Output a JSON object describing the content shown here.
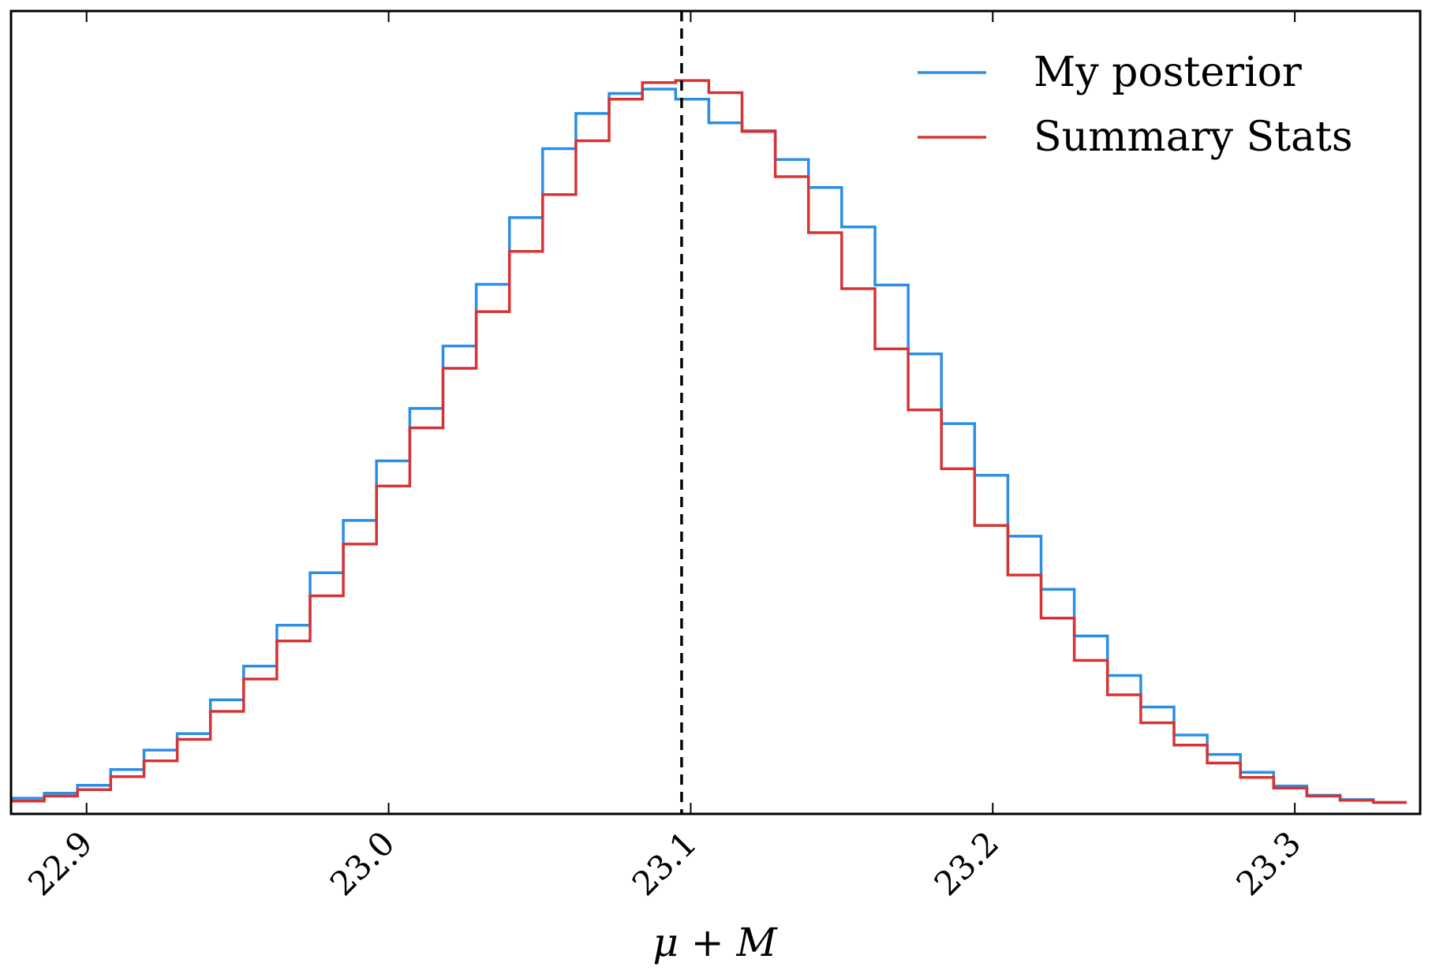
{
  "chart_data": {
    "type": "line",
    "drawstyle": "steps",
    "xlabel": "μ + M",
    "ylabel": "",
    "xlim": [
      22.875,
      23.3415
    ],
    "ylim": [
      0,
      1.0
    ],
    "x_ticks": [
      22.9,
      23.0,
      23.1,
      23.2,
      23.3
    ],
    "x_tick_labels": [
      "22.9",
      "23.0",
      "23.1",
      "23.2",
      "23.3"
    ],
    "y_ticks_shown": false,
    "grid": false,
    "legend_position": "top-right",
    "reference_line": {
      "x": 23.097,
      "style": "dashed",
      "color": "#000000"
    },
    "bin_edges": [
      22.875,
      22.886,
      22.897,
      22.908,
      22.919,
      22.93,
      22.941,
      22.952,
      22.963,
      22.974,
      22.985,
      22.996,
      23.007,
      23.018,
      23.029,
      23.04,
      23.051,
      23.062,
      23.073,
      23.084,
      23.095,
      23.106,
      23.117,
      23.128,
      23.139,
      23.15,
      23.161,
      23.172,
      23.183,
      23.194,
      23.205,
      23.216,
      23.227,
      23.238,
      23.249,
      23.26,
      23.271,
      23.282,
      23.293,
      23.304,
      23.315,
      23.326,
      23.337
    ],
    "series": [
      {
        "name": "My posterior",
        "color": "#2b8ee5",
        "values": [
          0.012,
          0.019,
          0.03,
          0.052,
          0.079,
          0.102,
          0.149,
          0.196,
          0.253,
          0.326,
          0.399,
          0.482,
          0.555,
          0.642,
          0.728,
          0.821,
          0.917,
          0.966,
          0.994,
          1.0,
          0.986,
          0.953,
          0.942,
          0.902,
          0.863,
          0.808,
          0.727,
          0.631,
          0.534,
          0.462,
          0.377,
          0.303,
          0.238,
          0.183,
          0.139,
          0.1,
          0.073,
          0.048,
          0.029,
          0.016,
          0.01,
          0.006
        ]
      },
      {
        "name": "Summary Stats",
        "color": "#d63434",
        "values": [
          0.008,
          0.015,
          0.024,
          0.042,
          0.064,
          0.094,
          0.133,
          0.178,
          0.231,
          0.294,
          0.366,
          0.447,
          0.528,
          0.611,
          0.69,
          0.774,
          0.853,
          0.928,
          0.986,
          1.009,
          1.012,
          0.995,
          0.941,
          0.878,
          0.8,
          0.722,
          0.638,
          0.553,
          0.471,
          0.392,
          0.323,
          0.263,
          0.204,
          0.156,
          0.117,
          0.086,
          0.061,
          0.041,
          0.026,
          0.015,
          0.009,
          0.006
        ]
      }
    ]
  }
}
